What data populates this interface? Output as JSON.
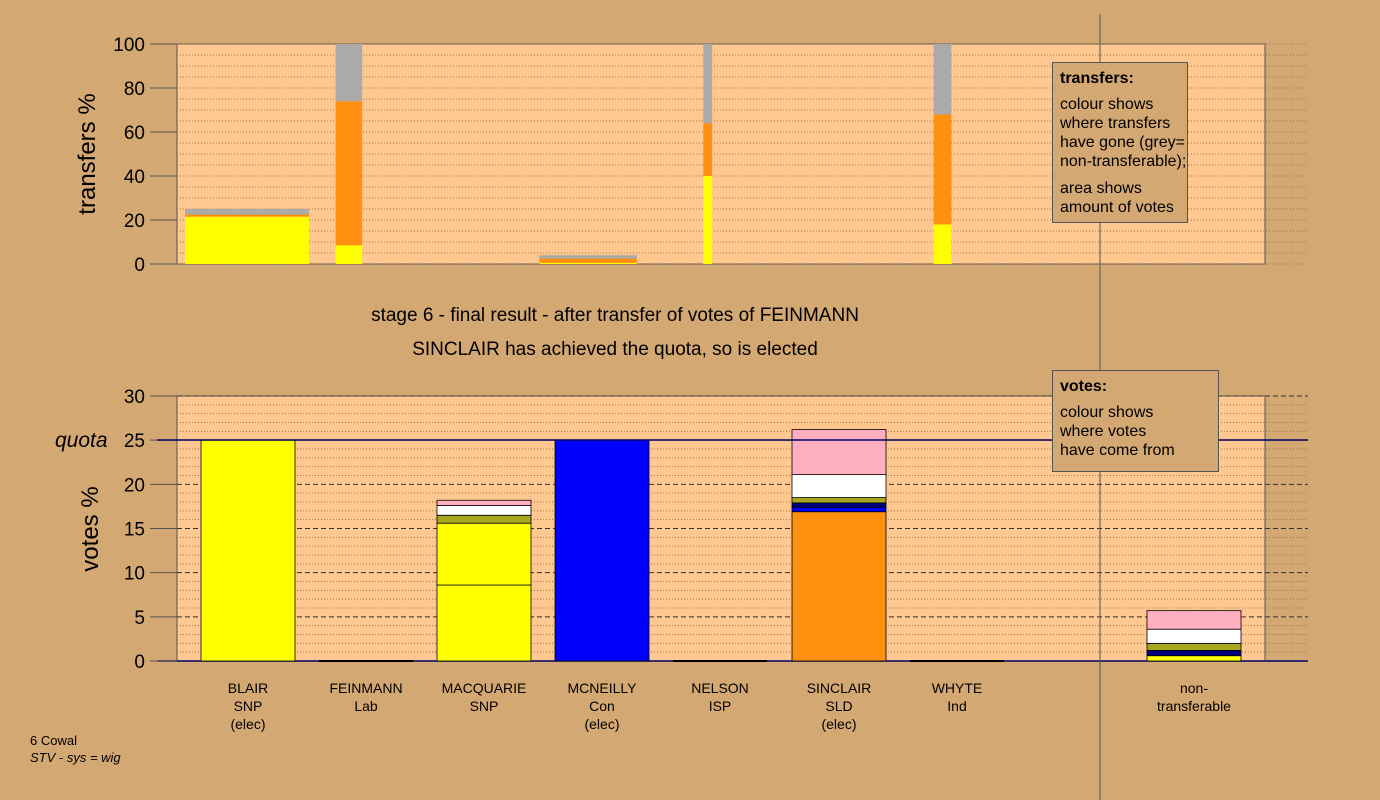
{
  "captions": {
    "stage": "stage 6 - final result - after transfer of votes of FEINMANN",
    "elected": "SINCLAIR has achieved the quota, so is elected"
  },
  "transfers_legend": {
    "title": "transfers:",
    "lines": [
      "colour shows",
      "where transfers",
      "have gone (grey=",
      "non-transferable);",
      "area shows",
      "amount of votes"
    ]
  },
  "votes_legend": {
    "title": "votes:",
    "lines": [
      "colour shows",
      "where votes",
      "have come from"
    ]
  },
  "footnote": {
    "line1": "6 Cowal",
    "line2": "STV - sys = wig"
  },
  "colors": {
    "background": "#d4a873",
    "plot_bg": "#ffc890",
    "SNP": "#ffff00",
    "Lab": "#ff9010",
    "Con": "#0000ff",
    "SLD": "#ff9010",
    "Ind": "#ffffff",
    "ISP": "#a8a820",
    "navy": "#000080",
    "pink": "#ffb0c0",
    "grey": "#aaaaaa"
  },
  "chart_data": [
    {
      "type": "bar",
      "name": "transfers",
      "ylabel": "transfers %",
      "ylim": [
        0,
        100
      ],
      "yticks": [
        0,
        20,
        40,
        60,
        80,
        100
      ],
      "grid": true,
      "bars": [
        {
          "x0": 0.3,
          "x1": 1.7,
          "segments": [
            {
              "color": "#ffff00",
              "value": 21.5
            },
            {
              "color": "#ff9010",
              "value": 1.0
            },
            {
              "color": "#aaaaaa",
              "value": 2.5
            }
          ]
        },
        {
          "x0": 2.0,
          "x1": 2.3,
          "segments": [
            {
              "color": "#ffff00",
              "value": 8.5
            },
            {
              "color": "#ff9010",
              "value": 65.5
            },
            {
              "color": "#aaaaaa",
              "value": 26.0
            }
          ]
        },
        {
          "x0": 4.3,
          "x1": 5.4,
          "segments": [
            {
              "color": "#ffff00",
              "value": 0.5
            },
            {
              "color": "#ff9010",
              "value": 2.0
            },
            {
              "color": "#aaaaaa",
              "value": 1.5
            }
          ]
        },
        {
          "x0": 6.15,
          "x1": 6.25,
          "segments": [
            {
              "color": "#ffff00",
              "value": 40.0
            },
            {
              "color": "#ff9010",
              "value": 24.0
            },
            {
              "color": "#aaaaaa",
              "value": 36.0
            }
          ]
        },
        {
          "x0": 8.75,
          "x1": 8.95,
          "segments": [
            {
              "color": "#ffff00",
              "value": 18.0
            },
            {
              "color": "#ff9010",
              "value": 50.0
            },
            {
              "color": "#aaaaaa",
              "value": 32.0
            }
          ]
        }
      ]
    },
    {
      "type": "bar",
      "name": "votes",
      "ylabel": "votes %",
      "ylim": [
        0,
        30
      ],
      "yticks": [
        0,
        5,
        10,
        15,
        20,
        25,
        30
      ],
      "quota": 25,
      "quota_label": "quota",
      "grid": true,
      "categories": [
        {
          "name": "BLAIR",
          "party": "SNP",
          "note": "(elec)"
        },
        {
          "name": "FEINMANN",
          "party": "Lab",
          "note": ""
        },
        {
          "name": "MACQUARIE",
          "party": "SNP",
          "note": ""
        },
        {
          "name": "MCNEILLY",
          "party": "Con",
          "note": "(elec)"
        },
        {
          "name": "NELSON",
          "party": "ISP",
          "note": ""
        },
        {
          "name": "SINCLAIR",
          "party": "SLD",
          "note": "(elec)"
        },
        {
          "name": "WHYTE",
          "party": "Ind",
          "note": ""
        }
      ],
      "extra_category": {
        "line1": "non-",
        "line2": "transferable"
      },
      "stacks": [
        [
          {
            "color": "#ffff00",
            "value": 25.0
          }
        ],
        [],
        [
          {
            "color": "#ffff00",
            "value": 8.6
          },
          {
            "color": "#ffff00",
            "value": 7.0
          },
          {
            "color": "#a8a820",
            "value": 0.9
          },
          {
            "color": "#ffffff",
            "value": 1.1
          },
          {
            "color": "#ffb0c0",
            "value": 0.6
          }
        ],
        [
          {
            "color": "#0000ff",
            "value": 25.0
          }
        ],
        [],
        [
          {
            "color": "#ff9010",
            "value": 16.9
          },
          {
            "color": "#0000ff",
            "value": 0.5
          },
          {
            "color": "#000080",
            "value": 0.5
          },
          {
            "color": "#a8a820",
            "value": 0.6
          },
          {
            "color": "#ffffff",
            "value": 2.6
          },
          {
            "color": "#ffb0c0",
            "value": 5.1
          }
        ],
        []
      ],
      "non_transferable": [
        {
          "color": "#ffff00",
          "value": 0.6
        },
        {
          "color": "#000080",
          "value": 0.6
        },
        {
          "color": "#a8a820",
          "value": 0.8
        },
        {
          "color": "#ffffff",
          "value": 1.6
        },
        {
          "color": "#ffb0c0",
          "value": 2.1
        }
      ]
    }
  ]
}
